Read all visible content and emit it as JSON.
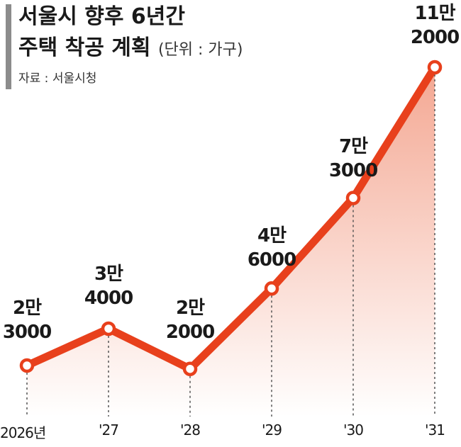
{
  "header": {
    "title_line1": "서울시 향후 6년간",
    "title_line2": "주택 착공 계획",
    "unit": "(단위 : 가구)",
    "source": "자료 : 서울시청"
  },
  "chart_data": {
    "type": "line",
    "title": "서울시 향후 6년간 주택 착공 계획",
    "unit": "(단위 : 가구)",
    "categories": [
      "2026년",
      "'27",
      "'28",
      "'29",
      "'30",
      "'31"
    ],
    "values": [
      23000,
      34000,
      22000,
      46000,
      73000,
      112000
    ],
    "data_labels": [
      [
        "2만",
        "3000"
      ],
      [
        "3만",
        "4000"
      ],
      [
        "2만",
        "2000"
      ],
      [
        "4만",
        "6000"
      ],
      [
        "7만",
        "3000"
      ],
      [
        "11만",
        "2000"
      ]
    ],
    "ylim": [
      0,
      125000
    ],
    "grid": false,
    "line_color": "#e8401c",
    "fill_color": "#f08a6e"
  }
}
